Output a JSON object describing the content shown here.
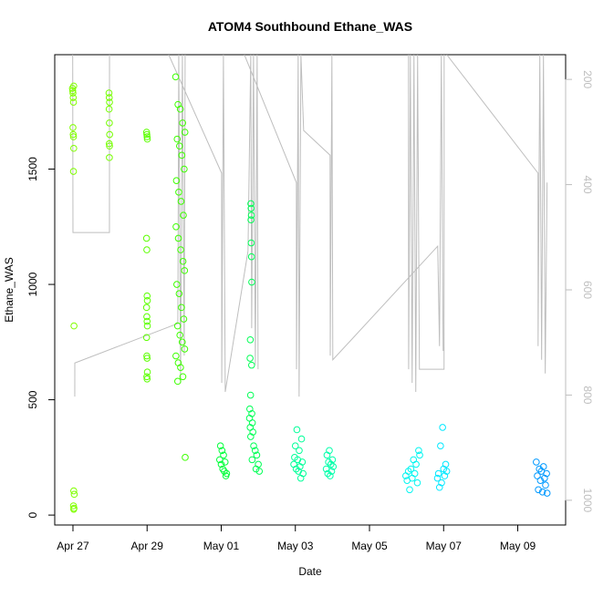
{
  "chart_data": {
    "type": "scatter",
    "title": "ATOM4 Southbound Ethane_WAS",
    "xlabel": "Date",
    "ylabel": "Ethane_WAS",
    "xlim": [
      "04-26 12:12",
      "05-10 07:00"
    ],
    "xticks": [
      {
        "value": "04-27",
        "label": "Apr 27"
      },
      {
        "value": "04-29",
        "label": "Apr 29"
      },
      {
        "value": "05-01",
        "label": "May 01"
      },
      {
        "value": "05-03",
        "label": "May 03"
      },
      {
        "value": "05-05",
        "label": "May 05"
      },
      {
        "value": "05-07",
        "label": "May 07"
      },
      {
        "value": "05-09",
        "label": "May 09"
      }
    ],
    "ylim": [
      -43,
      1996
    ],
    "yticks": [
      0,
      500,
      1000,
      1500
    ],
    "y2lim": [
      1047,
      153
    ],
    "y2ticks": [
      200,
      400,
      600,
      800,
      1000
    ],
    "y2_color": "#bebebe",
    "series": [
      {
        "mode": "points",
        "color": "#80ff00",
        "x": [
          "04-26 23:40",
          "04-26 23:50",
          "04-27 00:00",
          "04-27 00:10",
          "04-27 00:20",
          "04-27 00:30",
          "04-27 00:00",
          "04-27 00:10",
          "04-27 00:20",
          "04-27 00:30",
          "04-27 00:20",
          "04-27 00:40",
          "04-27 00:30",
          "04-27 00:50",
          "04-27 00:20",
          "04-27 00:40",
          "04-27 00:30"
        ],
        "values": [
          1850,
          1840,
          1830,
          1810,
          1790,
          1860,
          1680,
          1650,
          1640,
          1590,
          1490,
          820,
          105,
          90,
          40,
          30,
          25
        ]
      },
      {
        "mode": "points",
        "color": "#75ff00",
        "x": [
          "04-27 23:20",
          "04-27 23:30",
          "04-27 23:40",
          "04-27 23:25",
          "04-27 23:35",
          "04-27 23:45",
          "04-27 23:30",
          "04-27 23:40",
          "04-27 23:35"
        ],
        "values": [
          1830,
          1810,
          1790,
          1760,
          1700,
          1650,
          1610,
          1600,
          1550
        ]
      },
      {
        "mode": "points",
        "color": "#5cff00",
        "x": [
          "04-28 23:40",
          "04-28 23:50",
          "04-29 00:00",
          "04-29 00:10",
          "04-28 23:40",
          "04-28 23:50",
          "04-29 00:00",
          "04-29 00:10",
          "04-28 23:40",
          "04-28 23:50",
          "04-29 00:00",
          "04-29 00:10",
          "04-28 23:40",
          "04-28 23:50",
          "04-29 00:00",
          "04-29 00:10",
          "04-28 23:50",
          "04-29 00:00"
        ],
        "values": [
          1660,
          1650,
          1640,
          1630,
          1200,
          1150,
          950,
          930,
          900,
          860,
          840,
          820,
          770,
          690,
          680,
          620,
          600,
          590
        ]
      },
      {
        "mode": "points",
        "color": "#3dff00",
        "x": [
          "04-29 18:30",
          "04-29 20:00",
          "04-29 21:30",
          "04-29 23:00",
          "04-30 00:30",
          "04-29 19:30",
          "04-29 21:00",
          "04-29 22:30",
          "04-30 00:00",
          "04-29 19:00",
          "04-29 20:30",
          "04-29 22:00",
          "04-29 23:30",
          "04-29 18:45",
          "04-29 20:15",
          "04-29 21:45",
          "04-29 23:15",
          "04-30 00:15",
          "04-29 19:15",
          "04-29 20:45",
          "04-29 22:15",
          "04-29 23:45",
          "04-29 19:45",
          "04-29 21:15",
          "04-29 22:45",
          "04-30 00:20",
          "04-29 18:40",
          "04-29 20:10",
          "04-29 21:40",
          "04-29 23:10",
          "04-29 19:50",
          "04-30 00:40"
        ],
        "values": [
          1900,
          1780,
          1760,
          1700,
          1660,
          1630,
          1600,
          1560,
          1500,
          1450,
          1400,
          1360,
          1300,
          1250,
          1200,
          1150,
          1100,
          1060,
          1000,
          960,
          900,
          850,
          820,
          780,
          750,
          720,
          690,
          660,
          640,
          600,
          580,
          250
        ]
      },
      {
        "mode": "points",
        "color": "#00ff3a",
        "x": [
          "04-30 23:00",
          "04-30 23:30",
          "05-01 00:00",
          "05-01 00:30",
          "05-01 01:00",
          "05-01 01:30",
          "05-01 02:00",
          "05-01 02:30",
          "05-01 03:00",
          "05-01 03:30"
        ],
        "values": [
          240,
          300,
          220,
          280,
          200,
          260,
          190,
          230,
          170,
          180
        ]
      },
      {
        "mode": "points",
        "color": "#00ff55",
        "x": [
          "05-01 19:10",
          "05-01 19:20",
          "05-01 19:30",
          "05-01 19:15",
          "05-01 19:25",
          "05-01 19:35",
          "05-01 19:45",
          "05-01 18:50",
          "05-01 18:40",
          "05-01 19:40",
          "05-01 19:00",
          "05-01 18:30",
          "05-01 19:50",
          "05-01 18:20",
          "05-01 20:10",
          "05-01 18:45",
          "05-01 20:30",
          "05-01 19:05",
          "05-01 21:00",
          "05-01 22:00",
          "05-01 23:00",
          "05-01 20:00",
          "05-02 00:00",
          "05-01 22:30",
          "05-02 00:40"
        ],
        "values": [
          1350,
          1330,
          1300,
          1280,
          1180,
          1120,
          1010,
          760,
          680,
          650,
          520,
          460,
          440,
          420,
          400,
          380,
          360,
          340,
          300,
          280,
          260,
          240,
          220,
          200,
          190
        ]
      },
      {
        "mode": "points",
        "color": "#00ff99",
        "x": [
          "05-02 23:00",
          "05-02 23:30",
          "05-03 00:00",
          "05-03 00:30",
          "05-03 01:00",
          "05-03 01:30",
          "05-03 02:00",
          "05-03 02:30",
          "05-03 03:00",
          "05-03 03:30",
          "05-03 04:00",
          "05-03 04:30",
          "05-03 05:00"
        ],
        "values": [
          220,
          250,
          300,
          200,
          370,
          240,
          190,
          280,
          210,
          160,
          330,
          230,
          180
        ]
      },
      {
        "mode": "points",
        "color": "#00ffaa",
        "x": [
          "05-03 20:00",
          "05-03 20:30",
          "05-03 21:00",
          "05-03 21:30",
          "05-03 22:00",
          "05-03 22:30",
          "05-03 23:00",
          "05-03 23:30",
          "05-04 00:00",
          "05-04 00:30"
        ],
        "values": [
          200,
          260,
          180,
          230,
          280,
          170,
          220,
          190,
          240,
          210
        ]
      },
      {
        "mode": "points",
        "color": "#00f5f0",
        "x": [
          "05-05 23:30",
          "05-06 00:20",
          "05-06 01:10",
          "05-06 02:00",
          "05-06 02:50",
          "05-06 03:40",
          "05-06 04:30",
          "05-06 05:20",
          "05-06 06:10",
          "05-06 07:00",
          "05-06 07:50",
          "05-06 08:30"
        ],
        "values": [
          170,
          150,
          190,
          110,
          200,
          160,
          240,
          180,
          220,
          140,
          280,
          260
        ]
      },
      {
        "mode": "points",
        "color": "#00e8ff",
        "x": [
          "05-06 20:00",
          "05-06 20:40",
          "05-06 21:20",
          "05-06 22:00",
          "05-06 22:40",
          "05-06 23:20",
          "05-07 00:00",
          "05-07 00:40",
          "05-07 01:20",
          "05-07 02:00"
        ],
        "values": [
          160,
          180,
          120,
          300,
          140,
          380,
          200,
          170,
          220,
          190
        ]
      },
      {
        "mode": "points",
        "color": "#0099ff",
        "x": [
          "05-09 12:00",
          "05-09 12:40",
          "05-09 13:20",
          "05-09 14:00",
          "05-09 14:40",
          "05-09 15:20",
          "05-09 16:00",
          "05-09 16:40",
          "05-09 17:20",
          "05-09 18:00",
          "05-09 18:40",
          "05-09 19:00"
        ],
        "values": [
          230,
          170,
          110,
          200,
          150,
          190,
          100,
          210,
          160,
          130,
          180,
          95
        ]
      },
      {
        "mode": "line",
        "axis": "y2",
        "color": "#bebebe",
        "x": [
          "04-26 23:50",
          "04-27 00:00",
          "04-27 23:37",
          "04-27 23:40",
          null,
          "04-27 01:10",
          "04-27 01:12",
          "04-29 19:54",
          "04-29 20:30",
          "04-29 21:40",
          "04-29 22:51",
          "04-30 00:02",
          "04-30 00:37",
          null,
          "04-29 14:00",
          "05-01 00:14",
          "05-01 00:20",
          "05-01 01:25",
          "05-01 02:36",
          "05-01 17:21",
          "05-01 19:08",
          "05-01 19:43",
          "05-01 20:54",
          "05-01 22:05",
          "05-01 23:15",
          "05-01 23:51",
          null,
          "05-01 15:00",
          "05-03 00:39",
          "05-03 00:45",
          "05-03 01:49",
          "05-03 02:25",
          "05-03 03:36",
          "05-03 05:22",
          "05-03 22:29",
          "05-03 22:35",
          "05-03 23:40",
          "05-04 00:15",
          "05-06 20:10",
          "05-06 21:20",
          "05-06 22:31",
          "05-06 23:41",
          null,
          "05-06 01:16",
          "05-06 01:20",
          "05-06 02:27",
          "05-06 03:37",
          "05-06 04:48",
          "05-06 05:58",
          "05-06 07:09",
          "05-06 08:20",
          "05-07 00:17",
          "05-07 00:20",
          null,
          "05-07 02:03",
          "05-09 13:06",
          "05-09 13:10",
          "05-09 14:17",
          "05-09 15:27",
          "05-09 16:38",
          "05-09 17:48",
          "05-09 19:00"
        ],
        "values": [
          153,
          491,
          491,
          153,
          null,
          803,
          739,
          664,
          153,
          777,
          153,
          725,
          153,
          null,
          153,
          378,
          777,
          153,
          794,
          526,
          153,
          673,
          153,
          742,
          153,
          751,
          null,
          153,
          396,
          751,
          153,
          803,
          153,
          297,
          344,
          725,
          153,
          733,
          517,
          707,
          153,
          716,
          null,
          153,
          751,
          153,
          777,
          153,
          794,
          153,
          751,
          751,
          153,
          null,
          153,
          378,
          707,
          153,
          733,
          153,
          759,
          396
        ]
      }
    ]
  }
}
